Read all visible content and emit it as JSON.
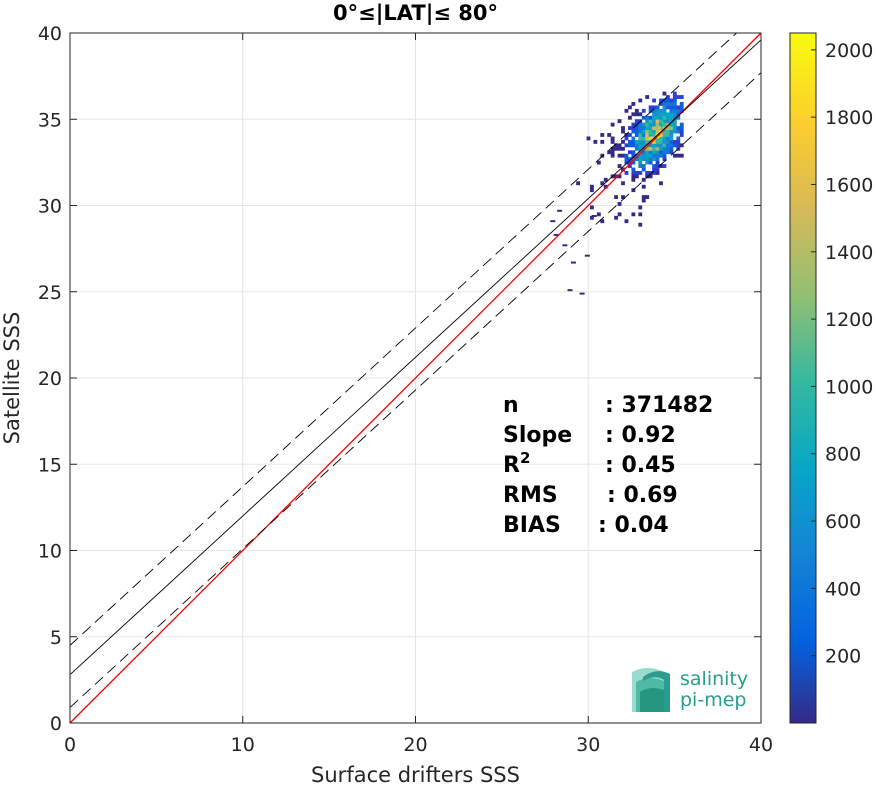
{
  "chart_data": {
    "type": "heatmap",
    "title": "0°≤|LAT|≤ 80°",
    "xlabel": "Surface drifters SSS",
    "ylabel": "Satellite SSS",
    "xlim": [
      0,
      40
    ],
    "ylim": [
      0,
      40
    ],
    "xticks": [
      "0",
      "10",
      "20",
      "30",
      "40"
    ],
    "yticks": [
      "0",
      "5",
      "10",
      "15",
      "20",
      "25",
      "30",
      "35",
      "40"
    ],
    "grid": true,
    "density_cluster": {
      "center": [
        33.8,
        34.0
      ],
      "core_range_x": [
        32.0,
        35.5
      ],
      "core_range_y": [
        31.0,
        36.0
      ],
      "sparse_extent_x": [
        27.5,
        35.5
      ],
      "sparse_extent_y": [
        25.0,
        36.5
      ],
      "peak_count": 2050
    },
    "lines": [
      {
        "name": "one-to-one",
        "color": "#ff0000",
        "style": "solid",
        "slope": 1.0,
        "intercept": 0.0
      },
      {
        "name": "regression",
        "color": "#000000",
        "style": "solid",
        "slope": 0.92,
        "intercept": 2.8
      },
      {
        "name": "regression-upper",
        "color": "#000000",
        "style": "dashed",
        "slope": 0.92,
        "intercept": 4.5
      },
      {
        "name": "regression-lower",
        "color": "#000000",
        "style": "dashed",
        "slope": 0.92,
        "intercept": 0.9
      }
    ],
    "stats": [
      {
        "label": "n",
        "sup": "",
        "value": ": 371482"
      },
      {
        "label": "Slope",
        "sup": "",
        "value": ": 0.92"
      },
      {
        "label": "R",
        "sup": "2",
        "value": ": 0.45"
      },
      {
        "label": "RMS",
        "sup": "",
        "value": ": 0.69"
      },
      {
        "label": "BIAS",
        "sup": "",
        "value": ": 0.04"
      }
    ],
    "colorbar": {
      "min": 0,
      "max": 2050,
      "ticks": [
        "200",
        "400",
        "600",
        "800",
        "1000",
        "1200",
        "1400",
        "1600",
        "1800",
        "2000"
      ]
    },
    "logo": {
      "line1": "salinity",
      "line2": "pi-mep"
    }
  }
}
